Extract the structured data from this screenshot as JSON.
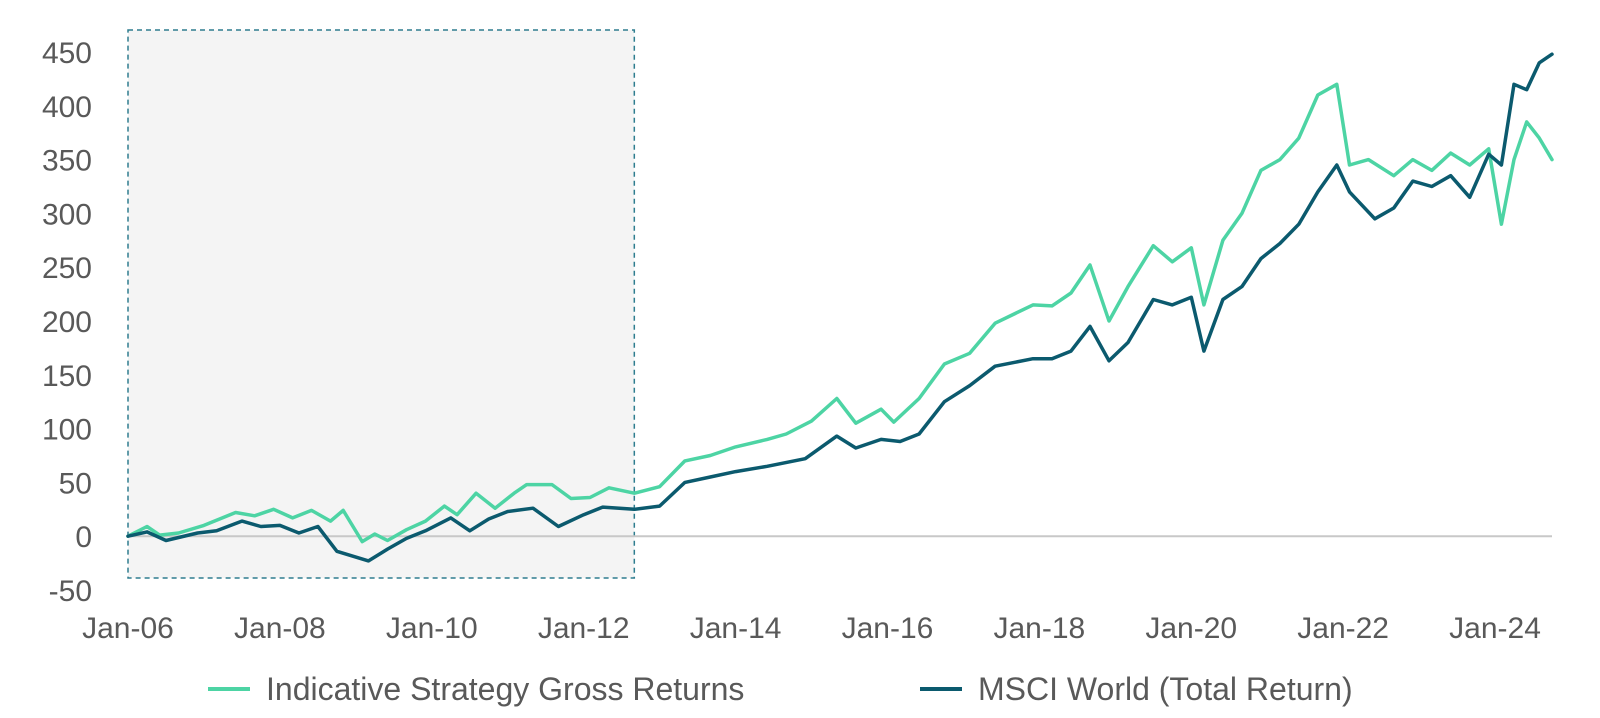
{
  "chart_data": {
    "type": "line",
    "title": "",
    "xlabel": "",
    "ylabel": "",
    "ylim": [
      -50,
      450
    ],
    "yticks": [
      -50,
      0,
      50,
      100,
      150,
      200,
      250,
      300,
      350,
      400,
      450
    ],
    "xlim": [
      "2006-01",
      "2024-10"
    ],
    "xtick_labels": [
      "Jan-06",
      "Jan-08",
      "Jan-10",
      "Jan-12",
      "Jan-14",
      "Jan-16",
      "Jan-18",
      "Jan-20",
      "Jan-22",
      "Jan-24"
    ],
    "grid": false,
    "zero_line": true,
    "legend_position": "bottom",
    "shaded_region": {
      "from": "2006-01",
      "to": "2012-09",
      "fill": "#f4f4f4",
      "border": "#2e7d8f",
      "style": "dashed"
    },
    "series": [
      {
        "name": "Indicative Strategy Gross Returns",
        "color": "#4dd4a4",
        "points": [
          [
            "2006-01",
            0
          ],
          [
            "2006-04",
            9
          ],
          [
            "2006-06",
            1
          ],
          [
            "2006-09",
            3
          ],
          [
            "2007-01",
            10
          ],
          [
            "2007-06",
            22
          ],
          [
            "2007-09",
            19
          ],
          [
            "2007-12",
            25
          ],
          [
            "2008-03",
            17
          ],
          [
            "2008-06",
            24
          ],
          [
            "2008-09",
            14
          ],
          [
            "2008-11",
            24
          ],
          [
            "2009-02",
            -5
          ],
          [
            "2009-04",
            2
          ],
          [
            "2009-06",
            -4
          ],
          [
            "2009-09",
            6
          ],
          [
            "2009-12",
            14
          ],
          [
            "2010-03",
            28
          ],
          [
            "2010-05",
            20
          ],
          [
            "2010-08",
            40
          ],
          [
            "2010-11",
            26
          ],
          [
            "2011-02",
            40
          ],
          [
            "2011-04",
            48
          ],
          [
            "2011-08",
            48
          ],
          [
            "2011-11",
            35
          ],
          [
            "2012-02",
            36
          ],
          [
            "2012-05",
            45
          ],
          [
            "2012-09",
            40
          ],
          [
            "2013-01",
            46
          ],
          [
            "2013-05",
            70
          ],
          [
            "2013-09",
            75
          ],
          [
            "2014-01",
            83
          ],
          [
            "2014-06",
            90
          ],
          [
            "2014-09",
            95
          ],
          [
            "2015-01",
            107
          ],
          [
            "2015-05",
            128
          ],
          [
            "2015-08",
            105
          ],
          [
            "2015-12",
            118
          ],
          [
            "2016-02",
            106
          ],
          [
            "2016-06",
            128
          ],
          [
            "2016-10",
            160
          ],
          [
            "2017-02",
            170
          ],
          [
            "2017-06",
            198
          ],
          [
            "2017-12",
            215
          ],
          [
            "2018-03",
            214
          ],
          [
            "2018-06",
            226
          ],
          [
            "2018-09",
            252
          ],
          [
            "2018-12",
            200
          ],
          [
            "2019-03",
            232
          ],
          [
            "2019-07",
            270
          ],
          [
            "2019-10",
            255
          ],
          [
            "2020-01",
            268
          ],
          [
            "2020-03",
            215
          ],
          [
            "2020-06",
            275
          ],
          [
            "2020-09",
            300
          ],
          [
            "2020-12",
            340
          ],
          [
            "2021-03",
            350
          ],
          [
            "2021-06",
            370
          ],
          [
            "2021-09",
            410
          ],
          [
            "2021-12",
            420
          ],
          [
            "2022-02",
            345
          ],
          [
            "2022-05",
            350
          ],
          [
            "2022-09",
            335
          ],
          [
            "2022-12",
            350
          ],
          [
            "2023-03",
            340
          ],
          [
            "2023-06",
            356
          ],
          [
            "2023-09",
            345
          ],
          [
            "2023-12",
            360
          ],
          [
            "2024-02",
            290
          ],
          [
            "2024-04",
            350
          ],
          [
            "2024-06",
            385
          ],
          [
            "2024-08",
            370
          ],
          [
            "2024-10",
            350
          ]
        ]
      },
      {
        "name": "MSCI World (Total Return)",
        "color": "#0b5a6e",
        "points": [
          [
            "2006-01",
            0
          ],
          [
            "2006-04",
            4
          ],
          [
            "2006-07",
            -4
          ],
          [
            "2006-12",
            3
          ],
          [
            "2007-03",
            5
          ],
          [
            "2007-07",
            14
          ],
          [
            "2007-10",
            9
          ],
          [
            "2008-01",
            10
          ],
          [
            "2008-04",
            3
          ],
          [
            "2008-07",
            9
          ],
          [
            "2008-10",
            -14
          ],
          [
            "2009-03",
            -23
          ],
          [
            "2009-06",
            -12
          ],
          [
            "2009-09",
            -2
          ],
          [
            "2009-12",
            5
          ],
          [
            "2010-04",
            17
          ],
          [
            "2010-07",
            5
          ],
          [
            "2010-10",
            16
          ],
          [
            "2011-01",
            23
          ],
          [
            "2011-05",
            26
          ],
          [
            "2011-09",
            9
          ],
          [
            "2012-01",
            20
          ],
          [
            "2012-04",
            27
          ],
          [
            "2012-09",
            25
          ],
          [
            "2013-01",
            28
          ],
          [
            "2013-05",
            50
          ],
          [
            "2013-09",
            55
          ],
          [
            "2014-01",
            60
          ],
          [
            "2014-06",
            65
          ],
          [
            "2014-12",
            72
          ],
          [
            "2015-05",
            93
          ],
          [
            "2015-08",
            82
          ],
          [
            "2015-12",
            90
          ],
          [
            "2016-03",
            88
          ],
          [
            "2016-06",
            95
          ],
          [
            "2016-10",
            125
          ],
          [
            "2017-02",
            140
          ],
          [
            "2017-06",
            158
          ],
          [
            "2017-12",
            165
          ],
          [
            "2018-03",
            165
          ],
          [
            "2018-06",
            172
          ],
          [
            "2018-09",
            195
          ],
          [
            "2018-12",
            163
          ],
          [
            "2019-03",
            180
          ],
          [
            "2019-07",
            220
          ],
          [
            "2019-10",
            215
          ],
          [
            "2020-01",
            222
          ],
          [
            "2020-03",
            172
          ],
          [
            "2020-06",
            220
          ],
          [
            "2020-09",
            232
          ],
          [
            "2020-12",
            258
          ],
          [
            "2021-03",
            272
          ],
          [
            "2021-06",
            290
          ],
          [
            "2021-09",
            320
          ],
          [
            "2021-12",
            345
          ],
          [
            "2022-02",
            320
          ],
          [
            "2022-06",
            295
          ],
          [
            "2022-09",
            305
          ],
          [
            "2022-12",
            330
          ],
          [
            "2023-03",
            325
          ],
          [
            "2023-06",
            335
          ],
          [
            "2023-09",
            315
          ],
          [
            "2023-12",
            355
          ],
          [
            "2024-02",
            345
          ],
          [
            "2024-04",
            420
          ],
          [
            "2024-06",
            415
          ],
          [
            "2024-08",
            440
          ],
          [
            "2024-10",
            448
          ]
        ]
      }
    ]
  }
}
